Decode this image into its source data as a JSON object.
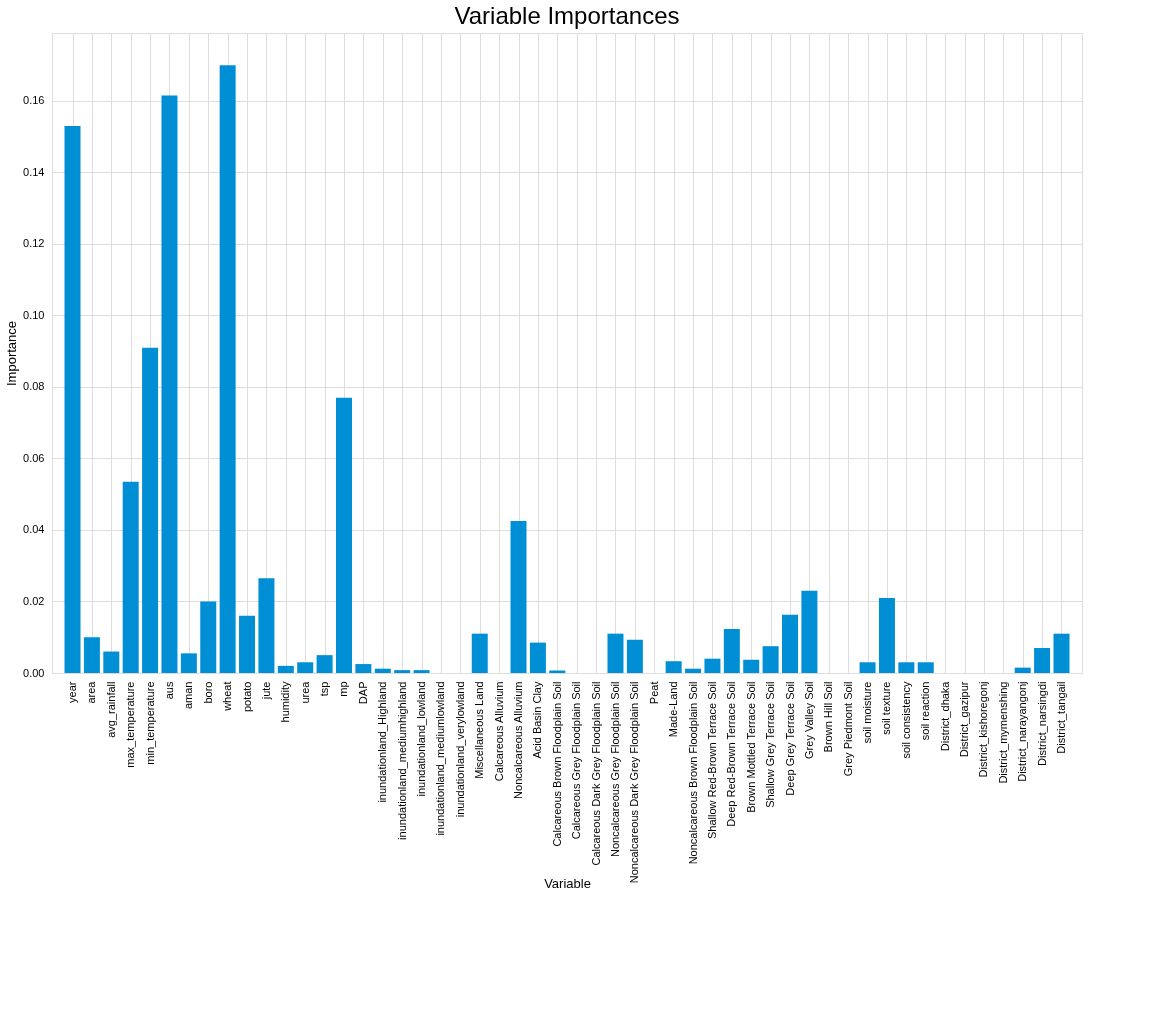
{
  "chart_data": {
    "type": "bar",
    "title": "Variable Importances",
    "xlabel": "Variable",
    "ylabel": "Importance",
    "categories": [
      "year",
      "area",
      "avg_rainfall",
      "max_temperature",
      "min_temperature",
      "aus",
      "aman",
      "boro",
      "wheat",
      "potato",
      "jute",
      "humidity",
      "urea",
      "tsp",
      "mp",
      "DAP",
      "inundationland_Highland",
      "inundationland_mediumhighland",
      "inundationland_lowland",
      "inundationland_mediumlowland",
      "inundationland_verylowland",
      "Miscellaneous Land",
      "Calcareous Alluvium",
      "Noncalcareous Alluvium",
      "Acid Basin Clay",
      "Calcareous Brown Floodplain Soil",
      "Calcareous Grey Floodplain Soil",
      "Calcareous Dark Grey Floodplain Soil",
      "Noncalcareous Grey Floodplain Soil",
      "Noncalcareous Dark Grey Floodplain Soil",
      "Peat",
      "Made-Land",
      "Noncalcareous Brown Floodplain Soil",
      "Shallow Red-Brown Terrace Soil",
      "Deep Red-Brown Terrace Soil",
      "Brown Mottled Terrace Soil",
      "Shallow Grey Terrace Soil",
      "Deep Grey Terrace Soil",
      "Grey Valley Soil",
      "Brown Hill Soil",
      "Grey Piedmont Soil",
      "soil moisture",
      "soil texture",
      "soil consistency",
      "soil reaction",
      "District_dhaka",
      "District_gazipur",
      "District_kishoregonj",
      "District_mymenshing",
      "District_narayangonj",
      "District_narsingdi",
      "District_tangail"
    ],
    "values": [
      0.153,
      0.01,
      0.006,
      0.0535,
      0.091,
      0.1615,
      0.0055,
      0.02,
      0.17,
      0.016,
      0.0265,
      0.002,
      0.003,
      0.005,
      0.077,
      0.0025,
      0.0012,
      0.0008,
      0.0008,
      0,
      0,
      0.011,
      0,
      0.0425,
      0.0085,
      0.0007,
      0,
      0,
      0.011,
      0.0093,
      0,
      0.0033,
      0.0012,
      0.004,
      0.0123,
      0.0037,
      0.0075,
      0.0163,
      0.023,
      0,
      0,
      0.003,
      0.021,
      0.003,
      0.003,
      0,
      0,
      0,
      0,
      0.0015,
      0.007,
      0.011
    ],
    "color": "#008fd5",
    "ylim": [
      0,
      0.179
    ],
    "yticks": [
      {
        "value": 0,
        "label": "0.00"
      },
      {
        "value": 0.02,
        "label": "0.02"
      },
      {
        "value": 0.04,
        "label": "0.04"
      },
      {
        "value": 0.06,
        "label": "0.06"
      },
      {
        "value": 0.08,
        "label": "0.08"
      },
      {
        "value": 0.1,
        "label": "0.10"
      },
      {
        "value": 0.12,
        "label": "0.12"
      },
      {
        "value": 0.14,
        "label": "0.14"
      },
      {
        "value": 0.16,
        "label": "0.16"
      }
    ],
    "grid": true
  }
}
